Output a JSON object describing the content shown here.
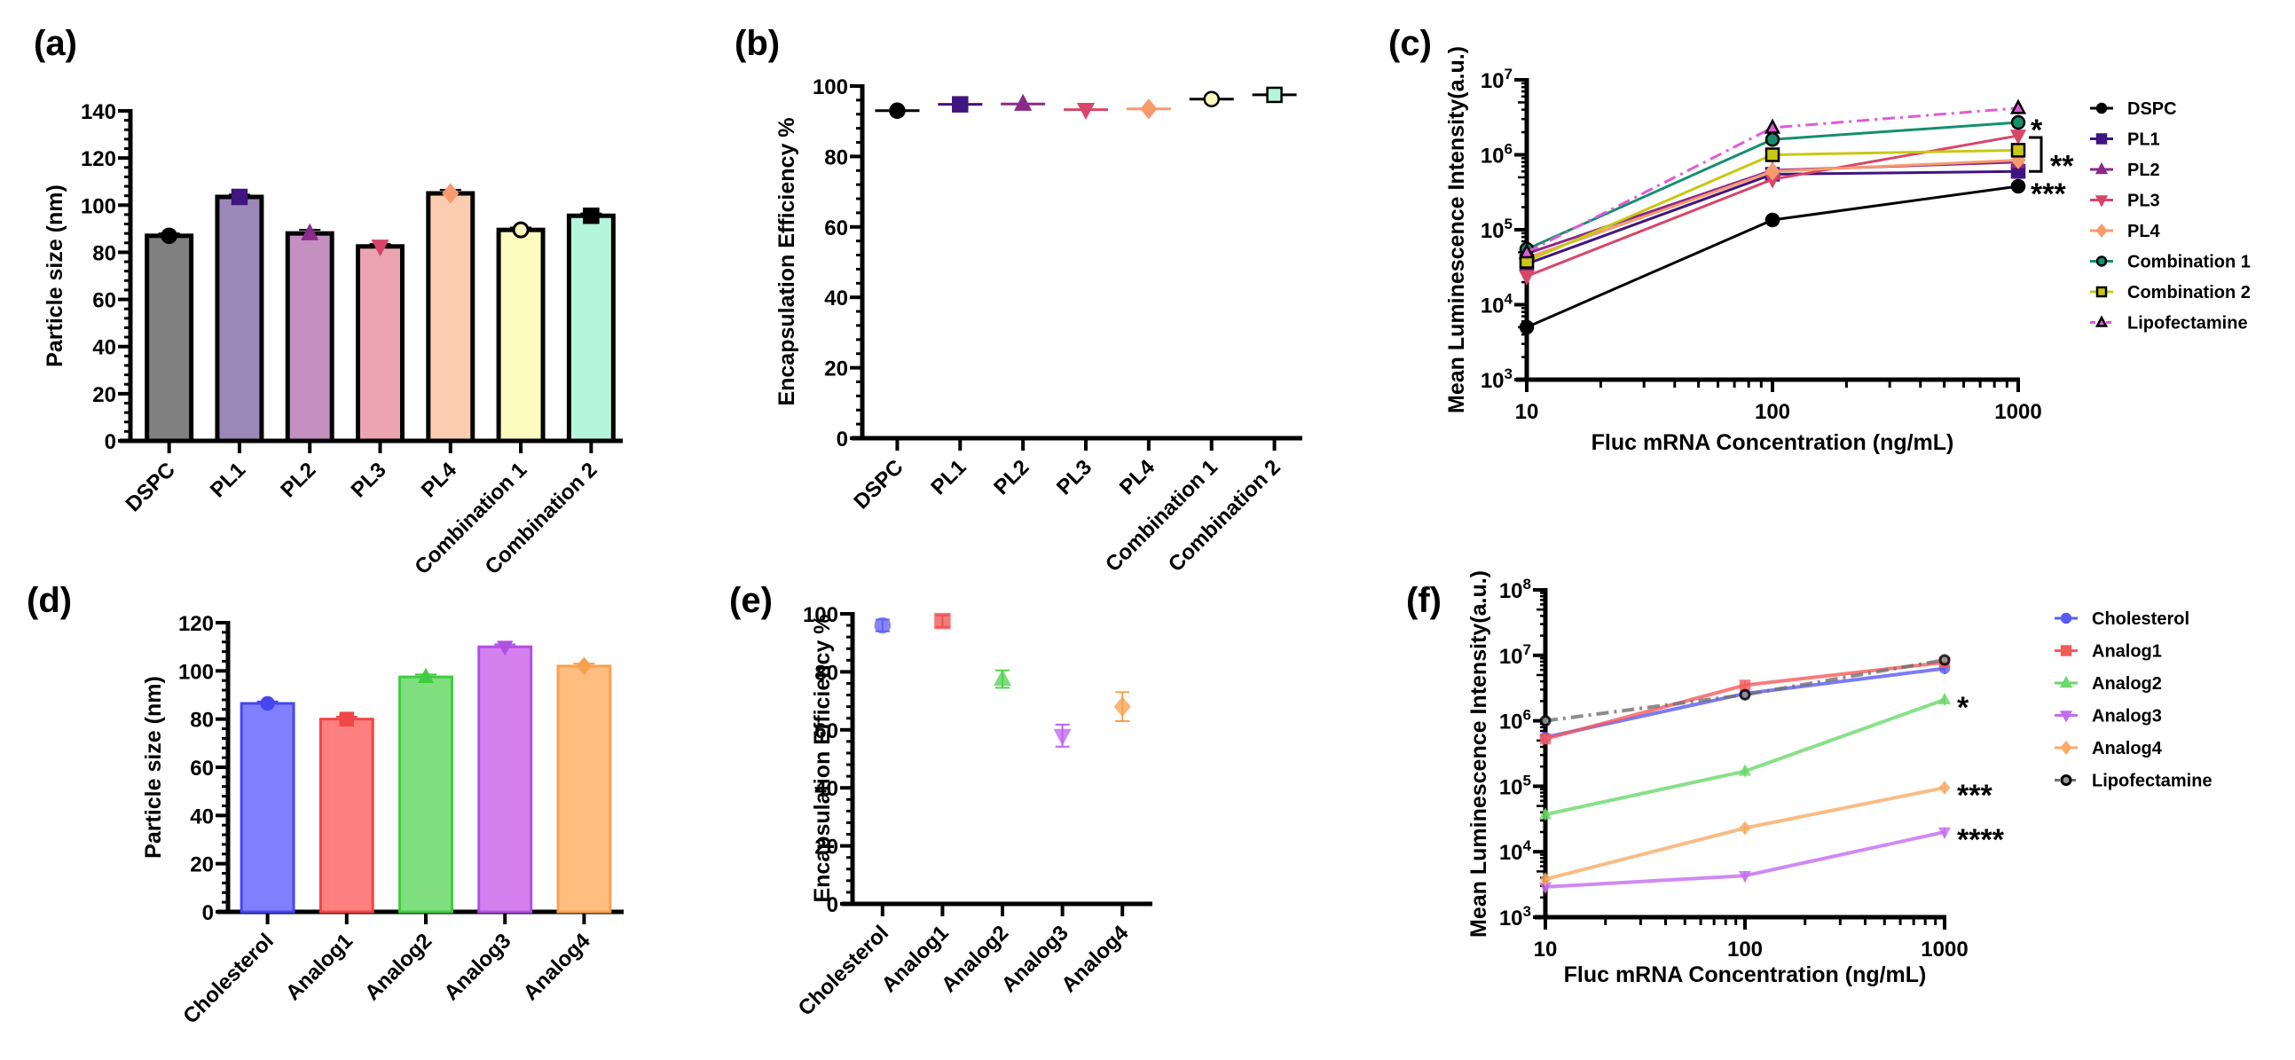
{
  "chart_data": [
    {
      "id": "a",
      "panel_label": "(a)",
      "type": "bar",
      "title": "",
      "xlabel": "",
      "ylabel": "Particle size (nm)",
      "ylim": [
        0,
        140
      ],
      "yticks": [
        0,
        20,
        40,
        60,
        80,
        100,
        120,
        140
      ],
      "grid": false,
      "categories": [
        "DSPC",
        "PL1",
        "PL2",
        "PL3",
        "PL4",
        "Combination 1",
        "Combination 2"
      ],
      "values": [
        87,
        103.5,
        88,
        82.5,
        105,
        89.5,
        95.5
      ],
      "errors": [
        1,
        1,
        1.5,
        1,
        1.5,
        1,
        1
      ],
      "colors": [
        "#808080",
        "#9b87b8",
        "#c490c0",
        "#eda4b1",
        "#fcccb0",
        "#fdfbbd",
        "#b4f5dc"
      ],
      "marker_colors": [
        "#000000",
        "#3f1580",
        "#8a2a8a",
        "#d8456a",
        "#f79b6e",
        "#fdfbbd",
        "#000000"
      ],
      "markers": [
        "circle",
        "square",
        "triangle",
        "triangle-down",
        "diamond",
        "circle-open",
        "square"
      ]
    },
    {
      "id": "b",
      "panel_label": "(b)",
      "type": "scatter",
      "title": "",
      "xlabel": "",
      "ylabel": "Encapsulation Efficiency %",
      "ylim": [
        0,
        100
      ],
      "yticks": [
        0,
        20,
        40,
        60,
        80,
        100
      ],
      "grid": false,
      "categories": [
        "DSPC",
        "PL1",
        "PL2",
        "PL3",
        "PL4",
        "Combination 1",
        "Combination 2"
      ],
      "values": [
        93,
        94.8,
        94.9,
        93.3,
        93.5,
        96.3,
        97.5
      ],
      "colors": [
        "#000000",
        "#3f1580",
        "#8a2a8a",
        "#d8456a",
        "#f79b6e",
        "#fdfbbd",
        "#b4f5dc"
      ],
      "markers": [
        "circle",
        "square",
        "triangle",
        "triangle-down",
        "diamond",
        "circle",
        "square"
      ]
    },
    {
      "id": "c",
      "panel_label": "(c)",
      "type": "line",
      "title": "",
      "xlabel": "Fluc mRNA Concentration (ng/mL)",
      "ylabel": "Mean Luminescence Intensity(a.u.)",
      "xscale": "log",
      "yscale": "log",
      "x": [
        10,
        100,
        1000
      ],
      "xticks": [
        "10",
        "100",
        "1000"
      ],
      "ylim": [
        1000,
        10000000
      ],
      "yticks": [
        "10^3",
        "10^4",
        "10^5",
        "10^6",
        "10^7"
      ],
      "legend_position": "right",
      "series": [
        {
          "name": "DSPC",
          "values": [
            5000,
            135000,
            380000
          ],
          "color": "#000000",
          "marker": "circle",
          "dash": "solid"
        },
        {
          "name": "PL1",
          "values": [
            35000,
            550000,
            600000
          ],
          "color": "#3f1580",
          "marker": "square",
          "dash": "solid"
        },
        {
          "name": "PL2",
          "values": [
            48000,
            620000,
            800000
          ],
          "color": "#8a2a8a",
          "marker": "triangle",
          "dash": "solid"
        },
        {
          "name": "PL3",
          "values": [
            24000,
            470000,
            1800000
          ],
          "color": "#d8456a",
          "marker": "triangle-down",
          "dash": "solid"
        },
        {
          "name": "PL4",
          "values": [
            42000,
            600000,
            850000
          ],
          "color": "#f79b6e",
          "marker": "diamond",
          "dash": "solid"
        },
        {
          "name": "Combination 1",
          "values": [
            55000,
            1600000,
            2700000
          ],
          "color": "#14906e",
          "marker": "circle",
          "dash": "solid"
        },
        {
          "name": "Combination 2",
          "values": [
            38000,
            1000000,
            1150000
          ],
          "color": "#c8c814",
          "marker": "square",
          "dash": "solid"
        },
        {
          "name": "Lipofectamine",
          "values": [
            50000,
            2300000,
            4200000
          ],
          "color": "#e05ad8",
          "marker": "triangle",
          "dash": "dashdot"
        }
      ],
      "annotations": [
        {
          "text": "*",
          "target": "Combination 1"
        },
        {
          "text": "**",
          "target": "PL1–PL4, Combination 2 (bracket)"
        },
        {
          "text": "***",
          "target": "DSPC"
        }
      ]
    },
    {
      "id": "d",
      "panel_label": "(d)",
      "type": "bar",
      "title": "",
      "xlabel": "",
      "ylabel": "Particle size (nm)",
      "ylim": [
        0,
        120
      ],
      "yticks": [
        0,
        20,
        40,
        60,
        80,
        100,
        120
      ],
      "grid": false,
      "categories": [
        "Cholesterol",
        "Analog1",
        "Analog2",
        "Analog3",
        "Analog4"
      ],
      "values": [
        86.5,
        80,
        97.5,
        110,
        102
      ],
      "errors": [
        0.8,
        1,
        1,
        1,
        1
      ],
      "colors": [
        "#8080ff",
        "#ff8080",
        "#80e080",
        "#d680f0",
        "#ffbd80"
      ],
      "edge_colors": [
        "#4646f0",
        "#f04646",
        "#40cc40",
        "#b050e0",
        "#f8a050"
      ],
      "markers": [
        "circle",
        "square",
        "triangle",
        "triangle-down",
        "diamond"
      ]
    },
    {
      "id": "e",
      "panel_label": "(e)",
      "type": "scatter",
      "title": "",
      "xlabel": "",
      "ylabel": "Encapsulation Efficiency %",
      "ylim": [
        0,
        100
      ],
      "yticks": [
        0,
        20,
        40,
        60,
        80,
        100
      ],
      "grid": false,
      "categories": [
        "Cholesterol",
        "Analog1",
        "Analog2",
        "Analog3",
        "Analog4"
      ],
      "values": [
        96,
        97.5,
        77.5,
        58,
        68
      ],
      "errors": [
        2,
        2,
        3,
        3.8,
        5
      ],
      "colors": [
        "#6060f0",
        "#f05050",
        "#50d050",
        "#c060f0",
        "#f8a050"
      ],
      "markers": [
        "circle",
        "square",
        "triangle",
        "triangle-down",
        "diamond"
      ]
    },
    {
      "id": "f",
      "panel_label": "(f)",
      "type": "line",
      "title": "",
      "xlabel": "Fluc mRNA Concentration (ng/mL)",
      "ylabel": "Mean Luminescence Intensity(a.u.)",
      "xscale": "log",
      "yscale": "log",
      "x": [
        10,
        100,
        1000
      ],
      "xticks": [
        "10",
        "100",
        "1000"
      ],
      "ylim": [
        1000,
        100000000
      ],
      "yticks": [
        "10^3",
        "10^4",
        "10^5",
        "10^6",
        "10^7",
        "10^8"
      ],
      "legend_position": "right",
      "series": [
        {
          "name": "Cholesterol",
          "values": [
            560000,
            2600000,
            6300000
          ],
          "color": "#5a5af5",
          "marker": "circle",
          "dash": "solid"
        },
        {
          "name": "Analog1",
          "values": [
            530000,
            3500000,
            7800000
          ],
          "color": "#f55a5a",
          "marker": "square",
          "dash": "solid"
        },
        {
          "name": "Analog2",
          "values": [
            37000,
            170000,
            2100000
          ],
          "color": "#6ad86a",
          "marker": "triangle",
          "dash": "solid"
        },
        {
          "name": "Analog3",
          "values": [
            2900,
            4300,
            20000
          ],
          "color": "#c46cf0",
          "marker": "triangle-down",
          "dash": "solid"
        },
        {
          "name": "Analog4",
          "values": [
            3800,
            23000,
            95000
          ],
          "color": "#f8ab66",
          "marker": "diamond",
          "dash": "solid"
        },
        {
          "name": "Lipofectamine",
          "values": [
            1000000,
            2500000,
            8500000
          ],
          "color": "#707070",
          "marker": "circle-open",
          "dash": "dashdot"
        }
      ],
      "annotations": [
        {
          "text": "*",
          "target": "Analog2"
        },
        {
          "text": "***",
          "target": "Analog4"
        },
        {
          "text": "****",
          "target": "Analog3"
        }
      ]
    }
  ]
}
